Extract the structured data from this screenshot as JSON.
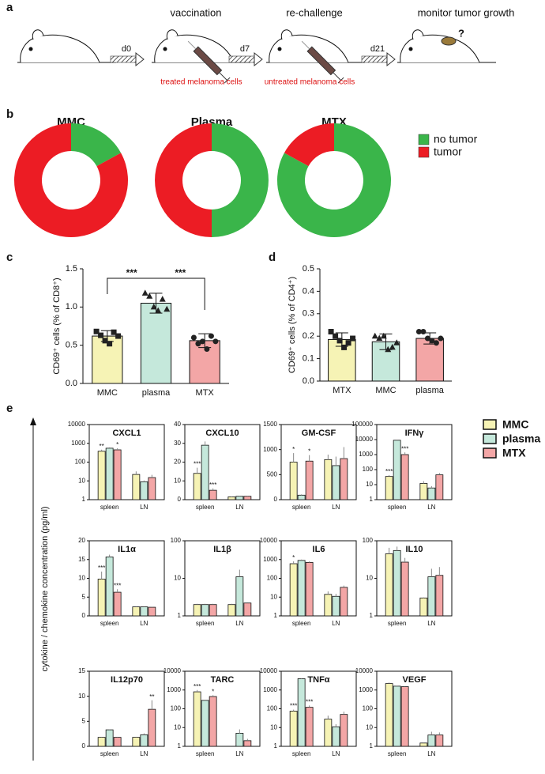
{
  "panel_labels": [
    "a",
    "b",
    "c",
    "d",
    "e"
  ],
  "schema": {
    "steps": [
      {
        "day": "d0",
        "title": "vaccination",
        "note": "treated melanoma cells"
      },
      {
        "day": "d7",
        "title": "re-challenge",
        "note": "untreated melanoma cells"
      },
      {
        "day": "d21",
        "title": "monitor tumor growth",
        "note": "?"
      }
    ]
  },
  "chart_data": [
    {
      "type": "donut",
      "categories": [
        "no tumor",
        "tumor"
      ],
      "colors": [
        "#3ab54a",
        "#ec1c24"
      ],
      "charts": [
        {
          "title": "MMC",
          "values": [
            17,
            83
          ]
        },
        {
          "title": "Plasma",
          "values": [
            50,
            50
          ]
        },
        {
          "title": "MTX",
          "values": [
            83,
            17
          ]
        }
      ]
    },
    {
      "type": "bar",
      "ylabel": "CD69⁺ cells (% of CD8⁺)",
      "categories": [
        "MMC",
        "plasma",
        "MTX"
      ],
      "colors": [
        "#f6f3b5",
        "#c5e8db",
        "#f3a6a6"
      ],
      "markers": [
        "square",
        "triangle",
        "circle"
      ],
      "values": [
        0.62,
        1.05,
        0.56
      ],
      "errors": [
        0.07,
        0.13,
        0.09
      ],
      "points": [
        [
          0.68,
          0.63,
          0.56,
          0.52,
          0.67,
          0.62
        ],
        [
          1.18,
          1.14,
          1.0,
          0.95,
          1.1,
          0.97
        ],
        [
          0.6,
          0.52,
          0.55,
          0.45,
          0.62,
          0.55
        ]
      ],
      "significance": [
        "***",
        "***"
      ],
      "ylim": [
        0,
        1.5
      ],
      "yticks": [
        {
          "value": 0,
          "label": "0.0"
        },
        {
          "value": 0.5,
          "label": "0.5"
        },
        {
          "value": 1,
          "label": "1.0"
        },
        {
          "value": 1.5,
          "label": "1.5"
        }
      ]
    },
    {
      "type": "bar",
      "ylabel": "CD69⁺ cells (% of CD4⁺)",
      "categories": [
        "MTX",
        "MMC",
        "plasma"
      ],
      "colors": [
        "#f6f3b5",
        "#c5e8db",
        "#f3a6a6"
      ],
      "markers": [
        "square",
        "triangle",
        "circle"
      ],
      "values": [
        0.185,
        0.175,
        0.19
      ],
      "errors": [
        0.03,
        0.035,
        0.025
      ],
      "points": [
        [
          0.22,
          0.2,
          0.18,
          0.15,
          0.17,
          0.19
        ],
        [
          0.2,
          0.19,
          0.2,
          0.14,
          0.15,
          0.17
        ],
        [
          0.22,
          0.22,
          0.19,
          0.18,
          0.17,
          0.19
        ]
      ],
      "ylim": [
        0,
        0.5
      ],
      "yticks": [
        {
          "value": 0,
          "label": "0.0"
        },
        {
          "value": 0.1,
          "label": "0.1"
        },
        {
          "value": 0.2,
          "label": "0.2"
        },
        {
          "value": 0.3,
          "label": "0.3"
        },
        {
          "value": 0.4,
          "label": "0.4"
        },
        {
          "value": 0.5,
          "label": "0.5"
        }
      ]
    },
    {
      "type": "bar-grid",
      "ylabel": "cytokine / chemokine concentration (pg/ml)",
      "series": [
        {
          "name": "MMC",
          "color": "#f6f3b5"
        },
        {
          "name": "plasma",
          "color": "#c5e8db"
        },
        {
          "name": "MTX",
          "color": "#f3a6a6"
        }
      ],
      "panels": [
        {
          "title": "CXCL1",
          "log_scale": true,
          "ylim": [
            1,
            10000
          ],
          "yticks": [
            1,
            10,
            100,
            1000,
            10000
          ],
          "categories": [
            "spleen",
            "LN"
          ],
          "values": [
            [
              380,
              22
            ],
            [
              550,
              9
            ],
            [
              450,
              15
            ]
          ],
          "errors": [
            [
              80,
              10
            ],
            [
              60,
              1.5
            ],
            [
              100,
              6
            ]
          ],
          "stars": [
            [
              "**",
              null
            ],
            [
              null,
              null
            ],
            [
              "*",
              null
            ]
          ]
        },
        {
          "title": "CXCL10",
          "log_scale": false,
          "ylim": [
            0,
            40
          ],
          "yticks": [
            0,
            10,
            20,
            30,
            40
          ],
          "categories": [
            "spleen",
            "LN"
          ],
          "values": [
            [
              14,
              1.5
            ],
            [
              29,
              1.8
            ],
            [
              5,
              1.8
            ]
          ],
          "errors": [
            [
              3,
              0.2
            ],
            [
              2,
              0.2
            ],
            [
              1,
              0.2
            ]
          ],
          "stars": [
            [
              "***",
              null
            ],
            [
              null,
              null
            ],
            [
              "***",
              null
            ]
          ]
        },
        {
          "title": "GM-CSF",
          "log_scale": false,
          "ylim": [
            0,
            1500
          ],
          "yticks": [
            0,
            500,
            1000,
            1500
          ],
          "categories": [
            "spleen",
            "LN"
          ],
          "values": [
            [
              750,
              800
            ],
            [
              90,
              680
            ],
            [
              770,
              820
            ]
          ],
          "errors": [
            [
              180,
              100
            ],
            [
              15,
              180
            ],
            [
              120,
              230
            ]
          ],
          "stars": [
            [
              "*",
              null
            ],
            [
              null,
              null
            ],
            [
              "*",
              null
            ]
          ]
        },
        {
          "title": "IFNγ",
          "log_scale": true,
          "ylim": [
            1,
            100000
          ],
          "yticks": [
            1,
            10,
            100,
            1000,
            10000,
            100000
          ],
          "categories": [
            "spleen",
            "LN"
          ],
          "values": [
            [
              35,
              12
            ],
            [
              9000,
              6
            ],
            [
              1000,
              45
            ]
          ],
          "errors": [
            [
              8,
              5
            ],
            [
              800,
              2
            ],
            [
              400,
              15
            ]
          ],
          "stars": [
            [
              "***",
              null
            ],
            [
              null,
              null
            ],
            [
              "***",
              null
            ]
          ]
        },
        {
          "title": "IL1α",
          "log_scale": false,
          "ylim": [
            0,
            20
          ],
          "yticks": [
            0,
            5,
            10,
            15,
            20
          ],
          "categories": [
            "spleen",
            "LN"
          ],
          "values": [
            [
              9.8,
              2.4
            ],
            [
              15.7,
              2.4
            ],
            [
              6.3,
              2.3
            ]
          ],
          "errors": [
            [
              2,
              0.1
            ],
            [
              0.6,
              0.1
            ],
            [
              0.8,
              0.1
            ]
          ],
          "stars": [
            [
              "***",
              null
            ],
            [
              null,
              null
            ],
            [
              "***",
              null
            ]
          ]
        },
        {
          "title": "IL1β",
          "log_scale": true,
          "ylim": [
            1,
            100
          ],
          "yticks": [
            1,
            10,
            100
          ],
          "categories": [
            "spleen",
            "LN"
          ],
          "values": [
            [
              2,
              2
            ],
            [
              2,
              11
            ],
            [
              2,
              2.2
            ]
          ],
          "errors": [
            [
              0.1,
              0.1
            ],
            [
              0.1,
              6
            ],
            [
              0.1,
              0.1
            ]
          ],
          "stars": [
            [
              null,
              null
            ],
            [
              null,
              null
            ],
            [
              null,
              null
            ]
          ]
        },
        {
          "title": "IL6",
          "log_scale": true,
          "ylim": [
            1,
            10000
          ],
          "yticks": [
            1,
            10,
            100,
            1000,
            10000
          ],
          "categories": [
            "spleen",
            "LN"
          ],
          "values": [
            [
              600,
              14
            ],
            [
              900,
              11
            ],
            [
              700,
              33
            ]
          ],
          "errors": [
            [
              200,
              6
            ],
            [
              100,
              4
            ],
            [
              100,
              8
            ]
          ],
          "stars": [
            [
              "*",
              null
            ],
            [
              null,
              null
            ],
            [
              null,
              null
            ]
          ]
        },
        {
          "title": "IL10",
          "log_scale": true,
          "ylim": [
            1,
            100
          ],
          "yticks": [
            1,
            10,
            100
          ],
          "categories": [
            "spleen",
            "LN"
          ],
          "values": [
            [
              45,
              3
            ],
            [
              55,
              11
            ],
            [
              27,
              12
            ]
          ],
          "errors": [
            [
              20,
              0.1
            ],
            [
              15,
              7
            ],
            [
              8,
              8
            ]
          ],
          "stars": [
            [
              null,
              null
            ],
            [
              null,
              null
            ],
            [
              null,
              null
            ]
          ]
        },
        {
          "title": "IL12p70",
          "log_scale": false,
          "ylim": [
            0,
            15
          ],
          "yticks": [
            0,
            5,
            10,
            15
          ],
          "categories": [
            "spleen",
            "LN"
          ],
          "values": [
            [
              1.8,
              1.8
            ],
            [
              3.3,
              2.3
            ],
            [
              1.8,
              7.4
            ]
          ],
          "errors": [
            [
              0.1,
              0.1
            ],
            [
              0.1,
              0.3
            ],
            [
              0.1,
              1.8
            ]
          ],
          "stars": [
            [
              null,
              null
            ],
            [
              null,
              null
            ],
            [
              null,
              "**"
            ]
          ]
        },
        {
          "title": "TARC",
          "log_scale": true,
          "ylim": [
            1,
            10000
          ],
          "yticks": [
            1,
            10,
            100,
            1000,
            10000
          ],
          "categories": [
            "spleen",
            "LN"
          ],
          "values": [
            [
              800,
              1
            ],
            [
              280,
              5
            ],
            [
              450,
              2
            ]
          ],
          "errors": [
            [
              200,
              0.1
            ],
            [
              20,
              3
            ],
            [
              80,
              0.5
            ]
          ],
          "stars": [
            [
              "***",
              null
            ],
            [
              null,
              null
            ],
            [
              "*",
              null
            ]
          ]
        },
        {
          "title": "TNFα",
          "log_scale": true,
          "ylim": [
            1,
            10000
          ],
          "yticks": [
            1,
            10,
            100,
            1000,
            10000
          ],
          "categories": [
            "spleen",
            "LN"
          ],
          "values": [
            [
              75,
              28
            ],
            [
              4000,
              11
            ],
            [
              120,
              50
            ]
          ],
          "errors": [
            [
              15,
              15
            ],
            [
              200,
              4
            ],
            [
              30,
              20
            ]
          ],
          "stars": [
            [
              "***",
              null
            ],
            [
              null,
              null
            ],
            [
              "***",
              null
            ]
          ]
        },
        {
          "title": "VEGF",
          "log_scale": true,
          "ylim": [
            1,
            10000
          ],
          "yticks": [
            1,
            10,
            100,
            1000,
            10000
          ],
          "categories": [
            "spleen",
            "LN"
          ],
          "values": [
            [
              2200,
              1.5
            ],
            [
              1600,
              4
            ],
            [
              1500,
              4
            ]
          ],
          "errors": [
            [
              300,
              0.1
            ],
            [
              100,
              2
            ],
            [
              100,
              1.5
            ]
          ],
          "stars": [
            [
              null,
              null
            ],
            [
              null,
              null
            ],
            [
              null,
              null
            ]
          ]
        }
      ]
    }
  ]
}
